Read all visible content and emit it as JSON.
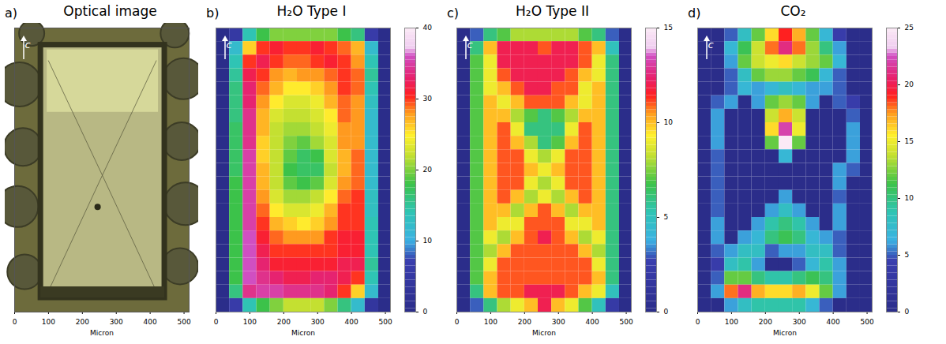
{
  "chart_data": [
    {
      "type": "image",
      "panel_label": "a)",
      "title": "Optical image",
      "axis_marker": "c",
      "xlabel": "Micron",
      "xlim": [
        0,
        515
      ],
      "xticks": [
        0,
        100,
        200,
        300,
        400,
        500
      ],
      "ylim": [
        0,
        840
      ],
      "tick_labels": "x"
    },
    {
      "type": "heatmap",
      "panel_label": "b)",
      "title": "H₂O Type I",
      "axis_marker": "c",
      "xlabel": "Micron",
      "xlim": [
        0,
        515
      ],
      "xticks": [
        0,
        100,
        200,
        300,
        400,
        500
      ],
      "ylim": [
        0,
        840
      ],
      "tick_labels": "x",
      "colorbar": {
        "range": [
          0,
          40
        ],
        "ticks": [
          0,
          10,
          20,
          30,
          40
        ]
      },
      "cells": {
        "x": [
          20,
          60,
          100,
          140,
          180,
          220,
          260,
          300,
          340,
          380,
          420,
          460,
          500
        ],
        "y": [
          820,
          780,
          740,
          700,
          660,
          620,
          580,
          540,
          500,
          460,
          420,
          380,
          340,
          300,
          260,
          220,
          180,
          140,
          100,
          60,
          20
        ],
        "values": [
          [
            0,
            5,
            14,
            18,
            20,
            20,
            20,
            20,
            20,
            18,
            16,
            6,
            0
          ],
          [
            0,
            12,
            26,
            30,
            31,
            30,
            30,
            31,
            30,
            29,
            27,
            12,
            0
          ],
          [
            0,
            14,
            30,
            32,
            30,
            29,
            29,
            30,
            31,
            30,
            28,
            14,
            0
          ],
          [
            0,
            15,
            32,
            30,
            28,
            27,
            28,
            28,
            29,
            30,
            29,
            15,
            0
          ],
          [
            0,
            16,
            33,
            29,
            27,
            25,
            25,
            26,
            28,
            30,
            29,
            14,
            0
          ],
          [
            0,
            16,
            33,
            28,
            25,
            23,
            23,
            24,
            27,
            29,
            28,
            13,
            0
          ],
          [
            0,
            16,
            34,
            27,
            23,
            22,
            22,
            23,
            25,
            29,
            28,
            12,
            0
          ],
          [
            0,
            17,
            34,
            27,
            22,
            21,
            21,
            22,
            24,
            28,
            28,
            12,
            0
          ],
          [
            0,
            17,
            34,
            26,
            22,
            20,
            19,
            21,
            23,
            28,
            28,
            12,
            0
          ],
          [
            0,
            17,
            35,
            26,
            22,
            19,
            17,
            18,
            23,
            27,
            29,
            12,
            0
          ],
          [
            0,
            17,
            35,
            27,
            22,
            18,
            17,
            17,
            22,
            27,
            29,
            12,
            0
          ],
          [
            0,
            18,
            35,
            27,
            22,
            19,
            18,
            19,
            23,
            28,
            29,
            12,
            0
          ],
          [
            0,
            18,
            35,
            28,
            23,
            21,
            21,
            22,
            25,
            29,
            30,
            13,
            0
          ],
          [
            0,
            18,
            35,
            29,
            25,
            23,
            23,
            24,
            27,
            30,
            30,
            13,
            0
          ],
          [
            0,
            18,
            35,
            30,
            27,
            26,
            25,
            26,
            28,
            30,
            30,
            14,
            0
          ],
          [
            0,
            18,
            36,
            31,
            29,
            28,
            28,
            28,
            30,
            31,
            31,
            14,
            0
          ],
          [
            0,
            18,
            36,
            32,
            30,
            30,
            30,
            30,
            30,
            31,
            31,
            14,
            0
          ],
          [
            0,
            18,
            36,
            33,
            31,
            31,
            31,
            31,
            31,
            32,
            32,
            15,
            0
          ],
          [
            0,
            18,
            36,
            34,
            33,
            32,
            32,
            33,
            33,
            32,
            30,
            14,
            0
          ],
          [
            0,
            16,
            34,
            35,
            35,
            34,
            34,
            34,
            33,
            30,
            26,
            12,
            0
          ],
          [
            0,
            6,
            14,
            18,
            20,
            22,
            22,
            22,
            20,
            16,
            12,
            4,
            0
          ]
        ]
      }
    },
    {
      "type": "heatmap",
      "panel_label": "c)",
      "title": "H₂O Type II",
      "axis_marker": "c",
      "xlabel": "Micron",
      "xlim": [
        0,
        515
      ],
      "xticks": [
        0,
        100,
        200,
        300,
        400,
        500
      ],
      "ylim": [
        0,
        840
      ],
      "tick_labels": "x",
      "colorbar": {
        "range": [
          0,
          15
        ],
        "ticks": [
          0,
          5,
          10,
          15
        ]
      },
      "cells": {
        "x": [
          20,
          60,
          100,
          140,
          180,
          220,
          260,
          300,
          340,
          380,
          420,
          460,
          500
        ],
        "y": [
          820,
          780,
          740,
          700,
          660,
          620,
          580,
          540,
          500,
          460,
          420,
          380,
          340,
          300,
          260,
          220,
          180,
          140,
          100,
          60,
          20
        ],
        "values": [
          [
            0,
            3,
            6,
            7,
            8,
            8,
            8,
            8,
            8,
            7,
            6,
            3,
            0
          ],
          [
            0,
            6,
            10,
            12,
            12,
            12,
            11,
            12,
            12,
            11,
            10,
            5,
            0
          ],
          [
            0,
            7,
            9,
            12,
            12,
            12,
            12,
            12,
            12,
            11,
            9,
            6,
            0
          ],
          [
            0,
            7,
            9,
            11,
            12,
            12,
            12,
            12,
            11,
            10,
            9,
            6,
            0
          ],
          [
            0,
            7,
            9,
            10,
            11,
            12,
            12,
            11,
            11,
            9,
            10,
            6,
            0
          ],
          [
            0,
            7,
            10,
            9,
            10,
            11,
            11,
            11,
            10,
            9,
            10,
            6,
            0
          ],
          [
            0,
            7,
            10,
            10,
            8,
            7,
            6,
            7,
            8,
            10,
            10,
            6,
            0
          ],
          [
            0,
            7,
            10,
            11,
            9,
            6,
            6,
            6,
            9,
            11,
            10,
            6,
            0
          ],
          [
            0,
            7,
            10,
            11,
            10,
            8,
            6,
            7,
            10,
            11,
            10,
            6,
            0
          ],
          [
            0,
            7,
            10,
            11,
            11,
            9,
            8,
            9,
            11,
            11,
            10,
            6,
            0
          ],
          [
            0,
            7,
            10,
            11,
            11,
            10,
            9,
            10,
            11,
            11,
            10,
            6,
            0
          ],
          [
            0,
            7,
            10,
            11,
            11,
            9,
            8,
            9,
            11,
            11,
            10,
            6,
            0
          ],
          [
            0,
            7,
            10,
            11,
            10,
            8,
            9,
            8,
            10,
            11,
            10,
            6,
            0
          ],
          [
            0,
            7,
            10,
            10,
            8,
            10,
            11,
            10,
            8,
            10,
            10,
            6,
            0
          ],
          [
            0,
            7,
            10,
            9,
            9,
            11,
            11,
            11,
            9,
            9,
            10,
            6,
            0
          ],
          [
            0,
            7,
            9,
            8,
            10,
            11,
            12,
            11,
            10,
            8,
            9,
            6,
            0
          ],
          [
            0,
            7,
            8,
            10,
            11,
            11,
            11,
            11,
            11,
            10,
            8,
            6,
            0
          ],
          [
            0,
            7,
            9,
            11,
            11,
            11,
            11,
            11,
            11,
            11,
            9,
            6,
            0
          ],
          [
            0,
            7,
            10,
            11,
            11,
            11,
            11,
            11,
            11,
            11,
            10,
            6,
            0
          ],
          [
            0,
            6,
            10,
            11,
            11,
            12,
            12,
            12,
            11,
            10,
            9,
            5,
            0
          ],
          [
            0,
            3,
            6,
            8,
            9,
            10,
            12,
            10,
            9,
            7,
            5,
            2,
            0
          ]
        ]
      }
    },
    {
      "type": "heatmap",
      "panel_label": "d)",
      "title": "CO₂",
      "axis_marker": "c",
      "xlabel": "Micron",
      "xlim": [
        0,
        515
      ],
      "xticks": [
        0,
        100,
        200,
        300,
        400,
        500
      ],
      "ylim": [
        0,
        840
      ],
      "tick_labels": "x",
      "colorbar": {
        "range": [
          0,
          25
        ],
        "ticks": [
          0,
          5,
          10,
          15,
          20,
          25
        ]
      },
      "cells": {
        "x": [
          20,
          60,
          100,
          140,
          180,
          220,
          260,
          300,
          340,
          380,
          420,
          460,
          500
        ],
        "y": [
          820,
          780,
          740,
          700,
          660,
          620,
          580,
          540,
          500,
          460,
          420,
          380,
          340,
          300,
          260,
          220,
          180,
          140,
          100,
          60,
          20
        ],
        "values": [
          [
            0,
            0,
            5,
            8,
            12,
            16,
            19,
            17,
            12,
            7,
            4,
            0,
            0
          ],
          [
            0,
            0,
            7,
            11,
            14,
            18,
            21,
            18,
            13,
            10,
            6,
            0,
            0
          ],
          [
            0,
            0,
            6,
            12,
            14,
            15,
            16,
            14,
            13,
            12,
            7,
            0,
            0
          ],
          [
            0,
            0,
            5,
            8,
            12,
            13,
            13,
            12,
            11,
            7,
            5,
            0,
            0
          ],
          [
            0,
            0,
            5,
            7,
            6,
            7,
            8,
            7,
            6,
            6,
            5,
            0,
            0
          ],
          [
            0,
            5,
            6,
            0,
            6,
            12,
            13,
            12,
            6,
            0,
            5,
            4,
            0
          ],
          [
            0,
            6,
            0,
            0,
            0,
            14,
            17,
            14,
            0,
            0,
            0,
            5,
            0
          ],
          [
            0,
            6,
            0,
            0,
            0,
            16,
            22,
            15,
            0,
            0,
            0,
            6,
            0
          ],
          [
            0,
            6,
            0,
            0,
            0,
            12,
            25,
            12,
            0,
            0,
            0,
            6,
            0
          ],
          [
            0,
            5,
            0,
            0,
            0,
            0,
            7,
            0,
            0,
            0,
            0,
            6,
            0
          ],
          [
            0,
            5,
            0,
            0,
            0,
            0,
            0,
            0,
            0,
            0,
            6,
            5,
            0
          ],
          [
            0,
            5,
            0,
            0,
            0,
            0,
            0,
            0,
            0,
            0,
            6,
            0,
            0
          ],
          [
            0,
            5,
            0,
            0,
            0,
            0,
            6,
            0,
            0,
            0,
            5,
            0,
            0
          ],
          [
            0,
            5,
            0,
            0,
            0,
            6,
            8,
            6,
            0,
            0,
            6,
            0,
            0
          ],
          [
            0,
            6,
            0,
            0,
            6,
            9,
            10,
            9,
            6,
            0,
            6,
            0,
            0
          ],
          [
            0,
            6,
            0,
            6,
            7,
            10,
            11,
            10,
            7,
            6,
            5,
            0,
            0
          ],
          [
            0,
            5,
            6,
            8,
            8,
            5,
            6,
            6,
            8,
            8,
            5,
            0,
            0
          ],
          [
            0,
            4,
            8,
            9,
            6,
            0,
            0,
            5,
            7,
            9,
            6,
            0,
            0
          ],
          [
            0,
            5,
            12,
            12,
            10,
            9,
            9,
            10,
            11,
            10,
            6,
            0,
            0
          ],
          [
            0,
            6,
            18,
            21,
            17,
            16,
            16,
            17,
            15,
            12,
            6,
            0,
            0
          ],
          [
            0,
            0,
            6,
            8,
            9,
            9,
            9,
            9,
            7,
            5,
            0,
            0,
            0
          ]
        ]
      }
    }
  ]
}
